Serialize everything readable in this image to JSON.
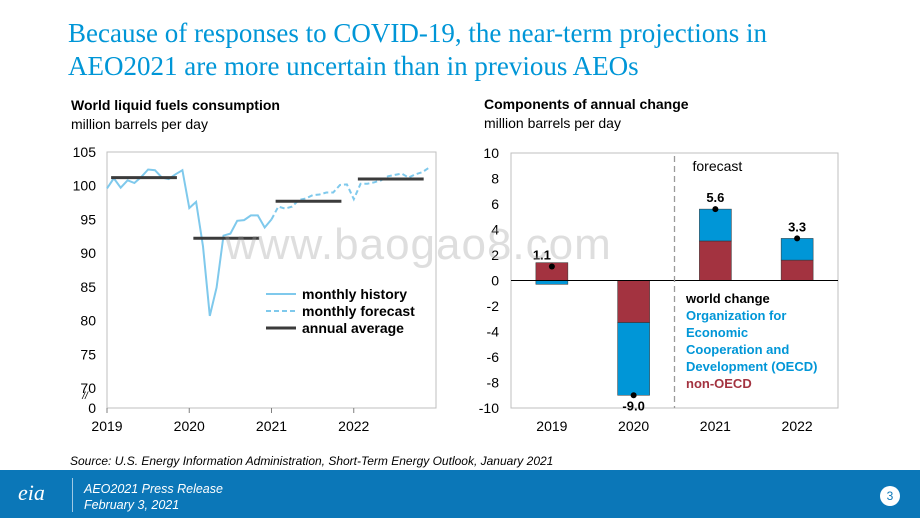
{
  "slide": {
    "title_line1": "Because of responses to COVID-19, the near-term projections in",
    "title_line2": "AEO2021 are more uncertain than in previous AEOs",
    "source": "Source: U.S. Energy Information Administration, Short-Term Energy Outlook, January 2021",
    "watermark": "www.baogao8.com",
    "footer": {
      "line1": "AEO2021 Press Release",
      "line2": "February 3, 2021",
      "page": "3",
      "logo": "eia"
    }
  },
  "chart_data": [
    {
      "type": "line",
      "title": "World liquid fuels consumption",
      "unit": "million barrels per day",
      "ylim": [
        70,
        105
      ],
      "yticks": [
        70,
        75,
        80,
        85,
        90,
        95,
        100,
        105
      ],
      "ybreak_label": "0",
      "break_marker": "//",
      "xlim": [
        2019,
        2023
      ],
      "xticks": [
        2019,
        2020,
        2021,
        2022
      ],
      "series": [
        {
          "name": "monthly history",
          "color": "#7FC9EC",
          "style": "solid",
          "x": [
            2019.0,
            2019.083,
            2019.167,
            2019.25,
            2019.333,
            2019.417,
            2019.5,
            2019.583,
            2019.667,
            2019.75,
            2019.833,
            2019.917,
            2020.0,
            2020.083,
            2020.167,
            2020.25,
            2020.333,
            2020.417,
            2020.5,
            2020.583,
            2020.667,
            2020.75,
            2020.833,
            2020.917,
            2021.0
          ],
          "values": [
            99.6,
            101.1,
            99.7,
            100.8,
            100.4,
            101.3,
            102.4,
            102.3,
            101.2,
            101.0,
            101.7,
            102.3,
            96.7,
            97.6,
            91.0,
            80.7,
            84.9,
            92.6,
            92.9,
            94.8,
            94.9,
            95.6,
            95.6,
            93.8,
            95.0
          ]
        },
        {
          "name": "monthly forecast",
          "color": "#7FC9EC",
          "style": "dashed",
          "x": [
            2021.0,
            2021.083,
            2021.167,
            2021.25,
            2021.333,
            2021.417,
            2021.5,
            2021.583,
            2021.667,
            2021.75,
            2021.833,
            2021.917,
            2022.0,
            2022.083,
            2022.167,
            2022.25,
            2022.333,
            2022.417,
            2022.5,
            2022.583,
            2022.667,
            2022.75,
            2022.833,
            2022.917
          ],
          "values": [
            95.0,
            96.9,
            96.6,
            96.9,
            97.9,
            98.1,
            98.6,
            98.7,
            99.0,
            99.0,
            100.1,
            100.2,
            98.0,
            100.3,
            100.3,
            100.5,
            100.8,
            101.4,
            101.6,
            101.8,
            101.2,
            101.7,
            102.0,
            102.7
          ]
        },
        {
          "name": "annual average",
          "color": "#3B3B3B",
          "style": "step",
          "segments": [
            {
              "x0": 2019.05,
              "x1": 2019.85,
              "value": 101.2
            },
            {
              "x0": 2020.05,
              "x1": 2020.85,
              "value": 92.2
            },
            {
              "x0": 2021.05,
              "x1": 2021.85,
              "value": 97.7
            },
            {
              "x0": 2022.05,
              "x1": 2022.85,
              "value": 101.0
            }
          ]
        }
      ]
    },
    {
      "type": "bar",
      "title": "Components of annual change",
      "unit": "million barrels per day",
      "ylim": [
        -10,
        10
      ],
      "yticks": [
        -10,
        -8,
        -6,
        -4,
        -2,
        0,
        2,
        4,
        6,
        8,
        10
      ],
      "categories": [
        "2019",
        "2020",
        "2021",
        "2022"
      ],
      "forecast_label": "forecast",
      "forecast_after": "2020",
      "series": [
        {
          "name": "Organization for Economic Cooperation and Development (OECD)",
          "color": "#0096D7",
          "values": [
            -0.3,
            -5.7,
            2.5,
            1.7
          ]
        },
        {
          "name": "non-OECD",
          "color": "#A33340",
          "values": [
            1.4,
            -3.3,
            3.1,
            1.6
          ]
        }
      ],
      "world_change": {
        "name": "world change",
        "values": [
          1.1,
          -9.0,
          5.6,
          3.3
        ],
        "labels": [
          "1.1",
          "-9.0",
          "5.6",
          "3.3"
        ]
      },
      "legend_lines": [
        "world change",
        "Organization for",
        "Economic",
        "Cooperation and",
        "Development (OECD)",
        "non-OECD"
      ]
    }
  ]
}
